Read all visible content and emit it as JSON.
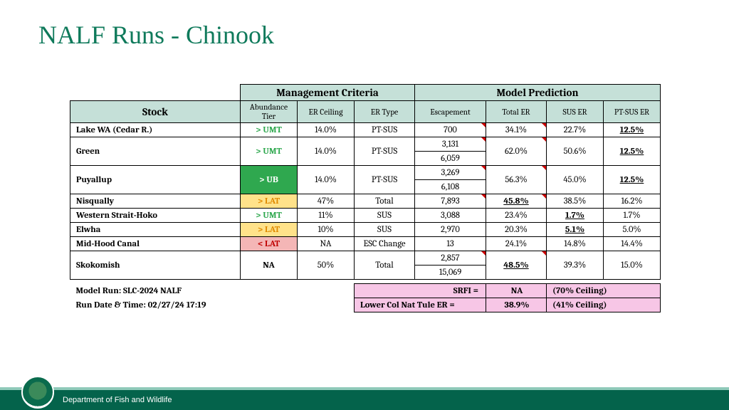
{
  "title": {
    "text": "NALF Runs - Chinook",
    "color": "#0f7a5b"
  },
  "colors": {
    "header_bg": "#c5e0d8",
    "tier_green_bg": "#2fa84f",
    "tier_yellow_bg": "#ffe28a",
    "tier_red_bg": "#f4b6b6",
    "pink_bg": "#f7c6e6",
    "umt_text": "#2fa84f",
    "ub_text": "#ffffff",
    "lat_text": "#e08a00",
    "lt_lat_text": "#c00000"
  },
  "headers": {
    "stock": "Stock",
    "mgmt": "Management Criteria",
    "model": "Model Prediction",
    "abundance": "Abundance Tier",
    "er_ceiling": "ER Ceiling",
    "er_type": "ER Type",
    "escapement": "Escapement",
    "total_er": "Total ER",
    "sus_er": "SUS ER",
    "pt_sus_er": "PT-SUS ER"
  },
  "rows": [
    {
      "stock": "Lake WA (Cedar R.)",
      "tier": "> UMT",
      "tier_bg": "#ffffff",
      "tier_color": "#2fa84f",
      "ceiling": "14.0%",
      "type": "PT-SUS",
      "esc": [
        "700"
      ],
      "total": "34.1%",
      "sus": "22.7%",
      "ptsus": "12.5%",
      "ptsus_emph": true,
      "tick": true
    },
    {
      "stock": "Green",
      "tier": "> UMT",
      "tier_bg": "#ffffff",
      "tier_color": "#2fa84f",
      "ceiling": "14.0%",
      "type": "PT-SUS",
      "esc": [
        "3,131",
        "6,059"
      ],
      "total": "62.0%",
      "sus": "50.6%",
      "ptsus": "12.5%",
      "ptsus_emph": true,
      "tick": true
    },
    {
      "stock": "Puyallup",
      "tier": "> UB",
      "tier_bg": "#2fa84f",
      "tier_color": "#ffffff",
      "ceiling": "14.0%",
      "type": "PT-SUS",
      "esc": [
        "3,269",
        "6,108"
      ],
      "total": "56.3%",
      "sus": "45.0%",
      "ptsus": "12.5%",
      "ptsus_emph": true,
      "tick": true
    },
    {
      "stock": "Nisqually",
      "tier": "> LAT",
      "tier_bg": "#ffe28a",
      "tier_color": "#e08a00",
      "ceiling": "47%",
      "type": "Total",
      "esc": [
        "7,893"
      ],
      "total": "45.8%",
      "total_emph": true,
      "sus": "38.5%",
      "ptsus": "16.2%",
      "tick": true
    },
    {
      "stock": "Western Strait-Hoko",
      "tier": "> UMT",
      "tier_bg": "#ffffff",
      "tier_color": "#2fa84f",
      "ceiling": "11%",
      "type": "SUS",
      "esc": [
        "3,088"
      ],
      "total": "23.4%",
      "sus": "1.7%",
      "sus_emph": true,
      "ptsus": "1.7%"
    },
    {
      "stock": "Elwha",
      "tier": "> LAT",
      "tier_bg": "#ffe28a",
      "tier_color": "#e08a00",
      "ceiling": "10%",
      "type": "SUS",
      "esc": [
        "2,970"
      ],
      "total": "20.3%",
      "sus": "5.1%",
      "sus_emph": true,
      "ptsus": "5.0%"
    },
    {
      "stock": "Mid-Hood Canal",
      "tier": "< LAT",
      "tier_bg": "#f4b6b6",
      "tier_color": "#c00000",
      "ceiling": "NA",
      "type": "ESC Change",
      "esc": [
        "13"
      ],
      "total": "24.1%",
      "sus": "14.8%",
      "ptsus": "14.4%"
    },
    {
      "stock": "Skokomish",
      "tier": "NA",
      "tier_bg": "#ffffff",
      "tier_color": "#000000",
      "ceiling": "50%",
      "type": "Total",
      "esc": [
        "2,857",
        "15,069"
      ],
      "total": "48.5%",
      "total_emph": true,
      "sus": "39.3%",
      "ptsus": "15.0%",
      "tick": true
    }
  ],
  "footer": {
    "model_run_label": "Model Run: SLC-2024 NALF",
    "run_date_label": "Run Date & Time:  02/27/24 17:19",
    "srfi_label": "SRFI =",
    "srfi_val": "NA",
    "srfi_ceil": "(70% Ceiling)",
    "lower_label": "Lower Col Nat Tule ER =",
    "lower_val": "38.9%",
    "lower_ceil": "(41% Ceiling)"
  },
  "dept": "Department of Fish and Wildlife"
}
